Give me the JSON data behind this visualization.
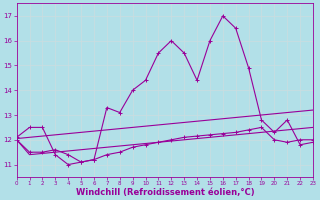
{
  "xlabel": "Windchill (Refroidissement éolien,°C)",
  "bg_color": "#b2e0e8",
  "grid_color": "#c8dde0",
  "line_color": "#990099",
  "xlim": [
    0,
    23
  ],
  "ylim": [
    10.5,
    17.5
  ],
  "yticks": [
    11,
    12,
    13,
    14,
    15,
    16,
    17
  ],
  "xticks": [
    0,
    1,
    2,
    3,
    4,
    5,
    6,
    7,
    8,
    9,
    10,
    11,
    12,
    13,
    14,
    15,
    16,
    17,
    18,
    19,
    20,
    21,
    22,
    23
  ],
  "series1_x": [
    0,
    1,
    2,
    3,
    4,
    5,
    6,
    7,
    8,
    9,
    10,
    11,
    12,
    13,
    14,
    15,
    16,
    17,
    18,
    19,
    20,
    21,
    22,
    23
  ],
  "series1_y": [
    12.1,
    12.5,
    12.5,
    11.4,
    11.0,
    11.1,
    11.2,
    13.3,
    13.1,
    14.0,
    14.4,
    15.5,
    16.0,
    15.5,
    14.4,
    16.0,
    17.0,
    16.5,
    14.9,
    12.8,
    12.3,
    12.8,
    11.8,
    11.9
  ],
  "series2_x": [
    0,
    1,
    2,
    3,
    4,
    5,
    6,
    7,
    8,
    9,
    10,
    11,
    12,
    13,
    14,
    15,
    16,
    17,
    18,
    19,
    20,
    21,
    22,
    23
  ],
  "series2_y": [
    12.05,
    12.1,
    12.15,
    12.2,
    12.25,
    12.3,
    12.35,
    12.4,
    12.45,
    12.5,
    12.55,
    12.6,
    12.65,
    12.7,
    12.75,
    12.8,
    12.85,
    12.9,
    12.95,
    13.0,
    13.05,
    13.1,
    13.15,
    13.2
  ],
  "series3_x": [
    0,
    1,
    2,
    3,
    4,
    5,
    6,
    7,
    8,
    9,
    10,
    11,
    12,
    13,
    14,
    15,
    16,
    17,
    18,
    19,
    20,
    21,
    22,
    23
  ],
  "series3_y": [
    12.0,
    11.5,
    11.5,
    11.6,
    11.4,
    11.1,
    11.2,
    11.4,
    11.5,
    11.7,
    11.8,
    11.9,
    12.0,
    12.1,
    12.15,
    12.2,
    12.25,
    12.3,
    12.4,
    12.5,
    12.0,
    11.9,
    12.0,
    12.0
  ],
  "series4_x": [
    0,
    1,
    2,
    3,
    4,
    5,
    6,
    7,
    8,
    9,
    10,
    11,
    12,
    13,
    14,
    15,
    16,
    17,
    18,
    19,
    20,
    21,
    22,
    23
  ],
  "series4_y": [
    12.0,
    11.4,
    11.45,
    11.5,
    11.55,
    11.6,
    11.65,
    11.7,
    11.75,
    11.8,
    11.85,
    11.9,
    11.95,
    12.0,
    12.05,
    12.1,
    12.15,
    12.2,
    12.25,
    12.3,
    12.35,
    12.4,
    12.45,
    12.5
  ],
  "xlabel_fontsize": 6,
  "tick_fontsize": 5,
  "line_width": 0.8,
  "marker_size": 2.5
}
